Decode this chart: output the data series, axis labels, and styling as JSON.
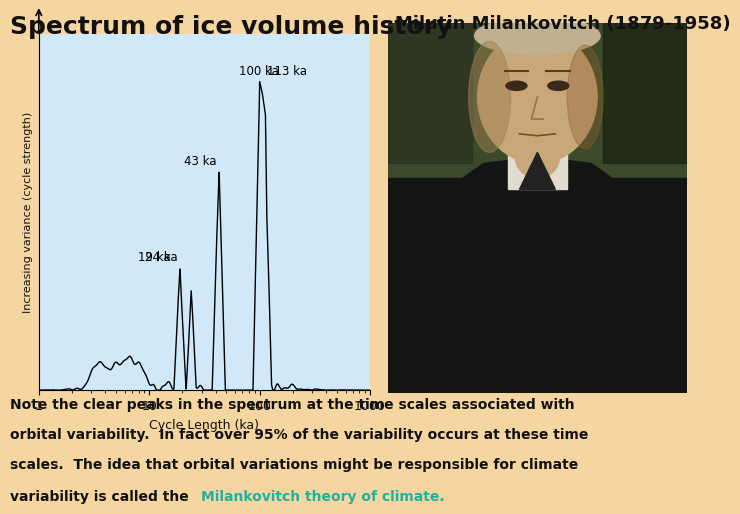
{
  "title": "Spectrum of ice volume history",
  "subtitle": "Milutin Milankovitch (1879-1958)",
  "background_color": "#f5d5a0",
  "plot_bg_color": "#d0e8f8",
  "title_fontsize": 18,
  "subtitle_fontsize": 13,
  "text_color": "#111111",
  "highlight_color": "#20b0a0",
  "xlabel": "Cycle Length (ka)",
  "ylabel": "Increasing variance (cycle strength)",
  "bottom_text_normal": "Note the clear peaks in the spectrum at the time scales associated with\norbital variability.  In fact over 95% of the variability occurs at these time\nscales.  The idea that orbital variations might be responsible for climate\nvariability is called the ",
  "bottom_text_highlight": "Milankovitch theory of climate.",
  "portrait_colors": {
    "bg": "#3a4a2a",
    "coat": "#151515",
    "face": "#c8a878",
    "shirt": "#e0ddd0",
    "tie": "#222222",
    "shadow": "#0a0a0a"
  }
}
